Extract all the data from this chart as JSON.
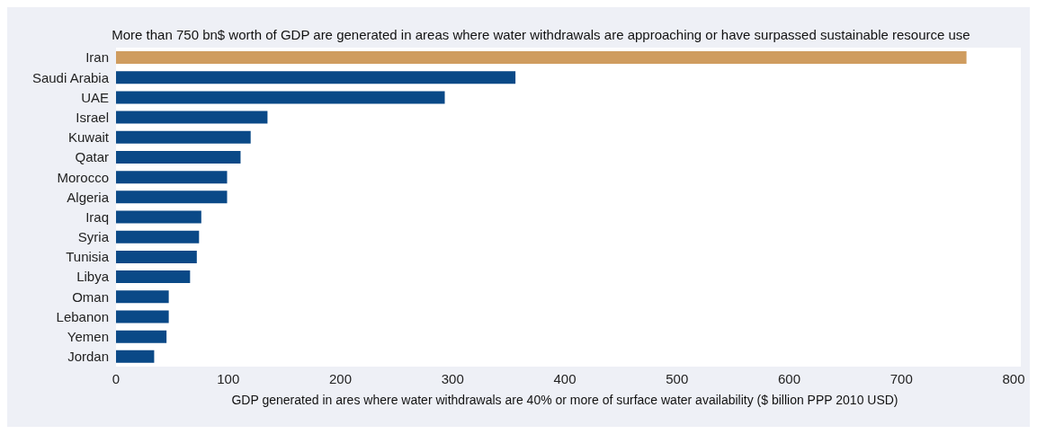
{
  "chart_data": {
    "type": "bar",
    "orientation": "horizontal",
    "title": "More than 750 bn$ worth of GDP are generated in areas where water withdrawals are approaching or have surpassed sustainable resource use",
    "xlabel": "GDP generated in ares where water withdrawals are 40% or more of surface water availability ($ billion PPP 2010 USD)",
    "categories": [
      "Iran",
      "Saudi Arabia",
      "UAE",
      "Israel",
      "Kuwait",
      "Qatar",
      "Morocco",
      "Algeria",
      "Iraq",
      "Syria",
      "Tunisia",
      "Libya",
      "Oman",
      "Lebanon",
      "Yemen",
      "Jordan"
    ],
    "values": [
      758,
      356,
      293,
      135,
      120,
      111,
      99,
      99,
      76,
      74,
      72,
      66,
      47,
      47,
      45,
      34
    ],
    "colors": [
      "#cf9c5f",
      "#0a4987",
      "#0a4987",
      "#0a4987",
      "#0a4987",
      "#0a4987",
      "#0a4987",
      "#0a4987",
      "#0a4987",
      "#0a4987",
      "#0a4987",
      "#0a4987",
      "#0a4987",
      "#0a4987",
      "#0a4987",
      "#0a4987"
    ],
    "xlim": [
      0,
      800
    ],
    "xticks": [
      0,
      100,
      200,
      300,
      400,
      500,
      600,
      700,
      800
    ],
    "grid": false
  }
}
